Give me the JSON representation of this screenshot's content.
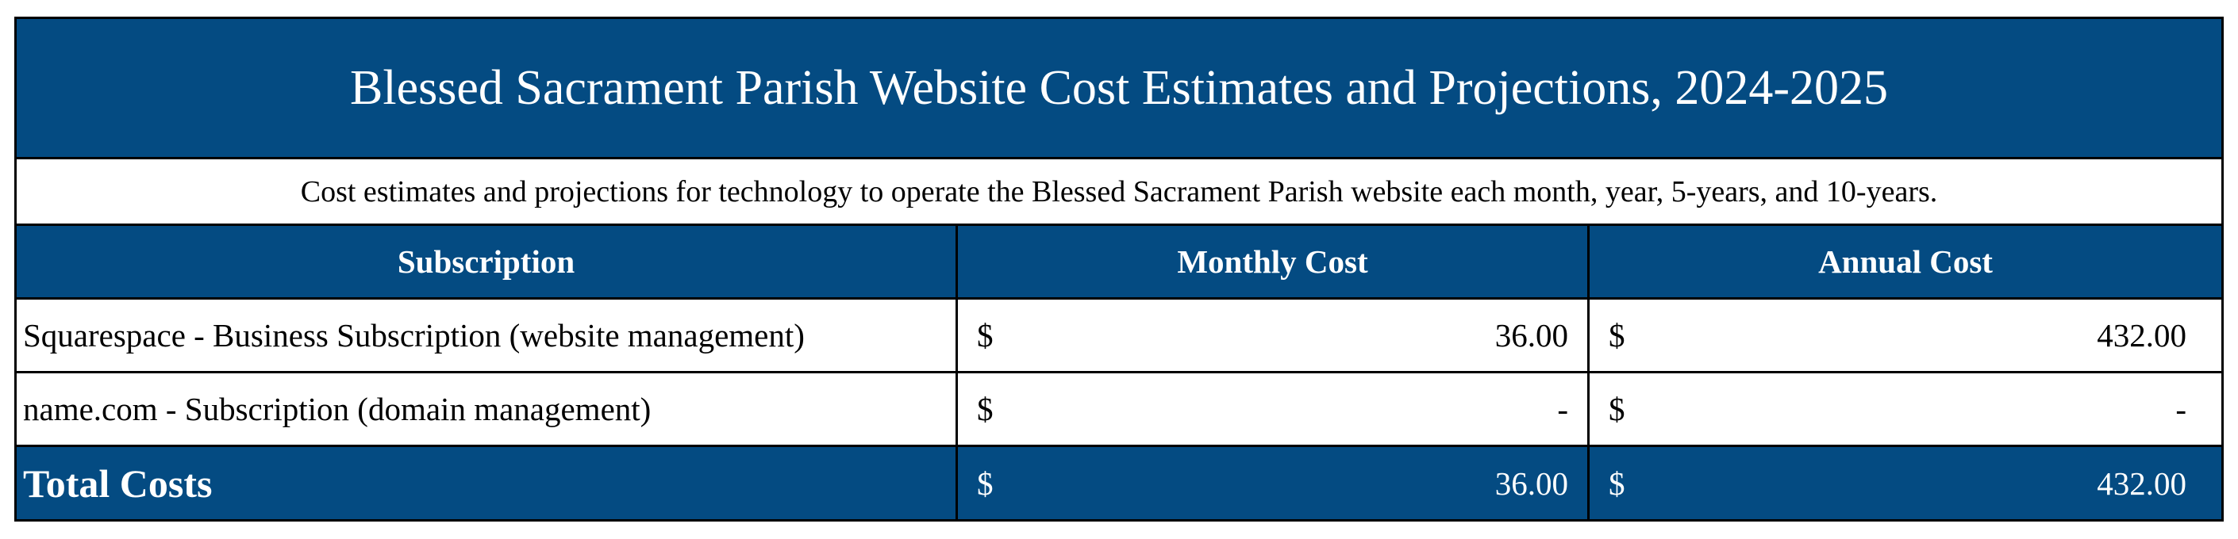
{
  "title": "Blessed Sacrament Parish Website Cost Estimates and Projections, 2024-2025",
  "description": "Cost estimates and projections for technology to operate the Blessed Sacrament Parish website each month, year, 5-years, and 10-years.",
  "headers": {
    "subscription": "Subscription",
    "monthly": "Monthly Cost",
    "annual": "Annual Cost"
  },
  "rows": [
    {
      "name": "Squarespace - Business Subscription (website management)",
      "monthly_currency": "$",
      "monthly_value": "36.00",
      "annual_currency": "$",
      "annual_value": "432.00"
    },
    {
      "name": "name.com - Subscription (domain management)",
      "monthly_currency": "$",
      "monthly_value": "-",
      "annual_currency": "$",
      "annual_value": "-"
    }
  ],
  "total": {
    "label": "Total Costs",
    "monthly_currency": "$",
    "monthly_value": "36.00",
    "annual_currency": "$",
    "annual_value": "432.00"
  },
  "colors": {
    "header_background": "#044b82",
    "header_text": "#ffffff",
    "border": "#000000"
  }
}
